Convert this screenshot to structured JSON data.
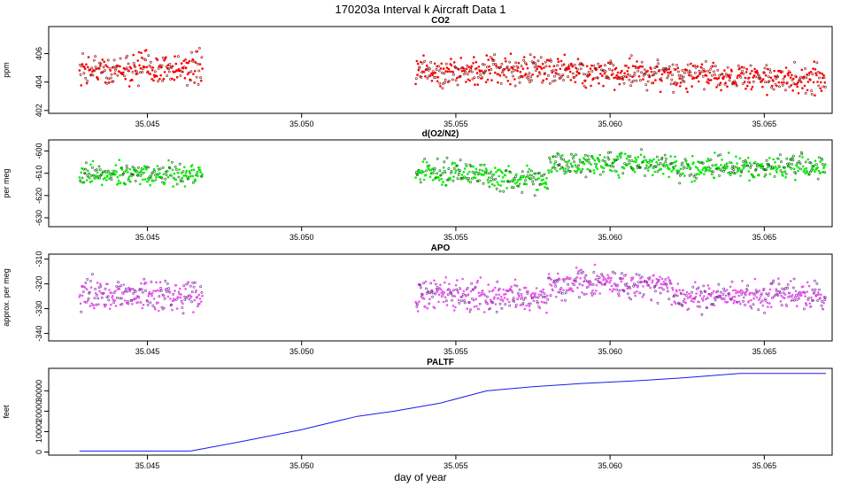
{
  "page": {
    "title": "170203a   Interval k Aircraft Data 1",
    "xlabel": "day of year"
  },
  "chart_data": [
    {
      "type": "scatter",
      "title": "CO2",
      "ylabel": "ppm",
      "color": "#ff0000",
      "xlim": [
        35.0418,
        35.0672
      ],
      "ylim": [
        401.8,
        407.9
      ],
      "xticks": [
        "35.045",
        "35.050",
        "35.055",
        "35.060",
        "35.065"
      ],
      "yticks": [
        "402",
        "404",
        "406"
      ],
      "x_extent": [
        35.0428,
        35.0468,
        35.0537,
        35.067
      ],
      "segments": [
        {
          "x": [
            35.0428,
            35.0468
          ],
          "level": 404.9,
          "spread": 0.9
        },
        {
          "x": [
            35.0537,
            35.056
          ],
          "level": 404.7,
          "spread": 0.8
        },
        {
          "x": [
            35.056,
            35.059
          ],
          "level": 404.9,
          "spread": 0.8
        },
        {
          "x": [
            35.059,
            35.062
          ],
          "level": 404.6,
          "spread": 0.8
        },
        {
          "x": [
            35.062,
            35.065
          ],
          "level": 404.4,
          "spread": 0.8
        },
        {
          "x": [
            35.065,
            35.067
          ],
          "level": 404.2,
          "spread": 0.8
        }
      ]
    },
    {
      "type": "scatter",
      "title": "d(O2/N2)",
      "ylabel": "per meg",
      "color": "#00ee00",
      "xlim": [
        35.0418,
        35.0672
      ],
      "ylim": [
        -634,
        -595
      ],
      "xticks": [
        "35.045",
        "35.050",
        "35.055",
        "35.060",
        "35.065"
      ],
      "yticks": [
        "-630",
        "-620",
        "-610",
        "-600"
      ],
      "x_extent": [
        35.0428,
        35.0468,
        35.0537,
        35.067
      ],
      "segments": [
        {
          "x": [
            35.0428,
            35.0468
          ],
          "level": -610.5,
          "spread": 4
        },
        {
          "x": [
            35.0537,
            35.056
          ],
          "level": -609.5,
          "spread": 4.5
        },
        {
          "x": [
            35.056,
            35.058
          ],
          "level": -612.5,
          "spread": 4.5
        },
        {
          "x": [
            35.058,
            35.062
          ],
          "level": -606.0,
          "spread": 4
        },
        {
          "x": [
            35.062,
            35.067
          ],
          "level": -607.5,
          "spread": 4
        }
      ]
    },
    {
      "type": "scatter",
      "title": "APO",
      "ylabel": "approx. per meg",
      "color": "#ee55ee",
      "xlim": [
        35.0418,
        35.0672
      ],
      "ylim": [
        -343,
        -308
      ],
      "xticks": [
        "35.045",
        "35.050",
        "35.055",
        "35.060",
        "35.065"
      ],
      "yticks": [
        "-340",
        "-330",
        "-320",
        "-310"
      ],
      "x_extent": [
        35.0428,
        35.0468,
        35.0537,
        35.067
      ],
      "segments": [
        {
          "x": [
            35.0428,
            35.0468
          ],
          "level": -324.5,
          "spread": 5
        },
        {
          "x": [
            35.0537,
            35.056
          ],
          "level": -324.0,
          "spread": 5
        },
        {
          "x": [
            35.056,
            35.058
          ],
          "level": -326.0,
          "spread": 5
        },
        {
          "x": [
            35.058,
            35.062
          ],
          "level": -320.0,
          "spread": 4.5
        },
        {
          "x": [
            35.062,
            35.067
          ],
          "level": -325.0,
          "spread": 4.5
        }
      ]
    },
    {
      "type": "line",
      "title": "PALTF",
      "ylabel": "feet",
      "color": "#1a1aee",
      "xlim": [
        35.0418,
        35.0672
      ],
      "ylim": [
        -1500,
        41000
      ],
      "xticks": [
        "35.045",
        "35.050",
        "35.055",
        "35.060",
        "35.065"
      ],
      "yticks": [
        "0",
        "10000",
        "20000",
        "30000"
      ],
      "x": [
        35.0428,
        35.0464,
        35.048,
        35.05,
        35.0518,
        35.053,
        35.0545,
        35.056,
        35.0575,
        35.059,
        35.061,
        35.0625,
        35.0642,
        35.0655,
        35.067
      ],
      "y": [
        500,
        500,
        5000,
        11000,
        17500,
        20000,
        24000,
        30000,
        32000,
        33500,
        35000,
        36500,
        38500,
        38500,
        38500
      ]
    }
  ]
}
